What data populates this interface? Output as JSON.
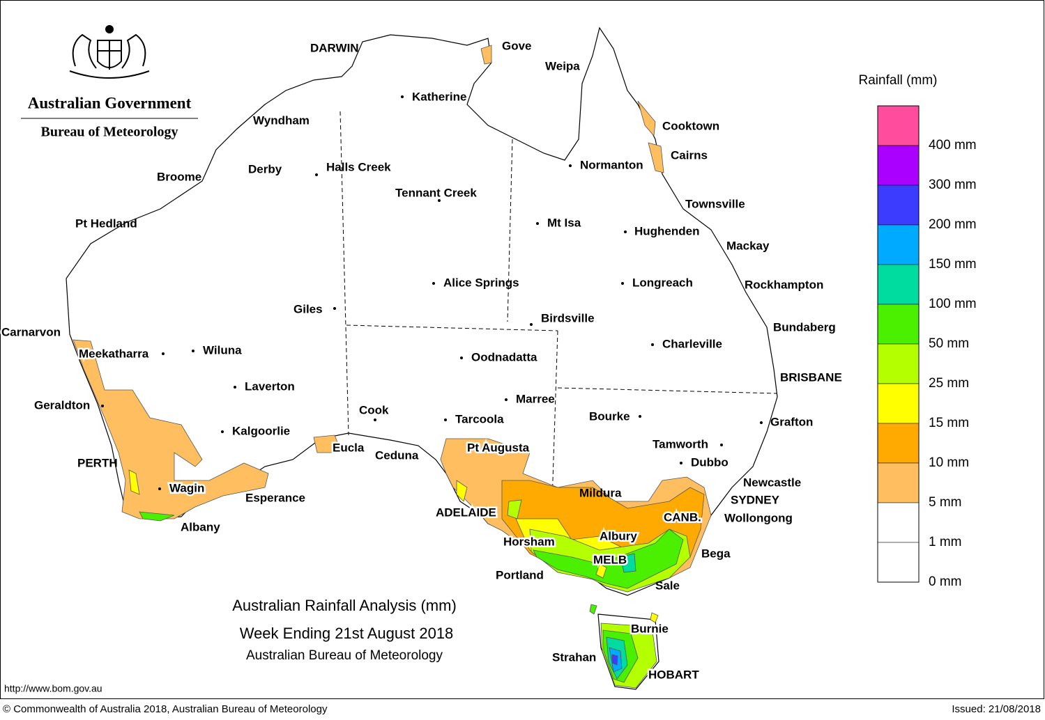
{
  "header": {
    "government": "Australian Government",
    "agency": "Bureau of Meteorology"
  },
  "title": {
    "line1": "Australian Rainfall Analysis (mm)",
    "line2": "Week Ending 21st August 2018",
    "line3": "Australian Bureau of Meteorology"
  },
  "legend": {
    "title": "Rainfall (mm)",
    "items": [
      {
        "label": "400 mm",
        "color": "#ff00ff"
      },
      {
        "label": "300 mm",
        "color": "#aa00ff"
      },
      {
        "label": "200 mm",
        "color": "#3c3cff"
      },
      {
        "label": "150 mm",
        "color": "#00aaff"
      },
      {
        "label": "100 mm",
        "color": "#00dca0"
      },
      {
        "label": "50 mm",
        "color": "#4bf000"
      },
      {
        "label": "25 mm",
        "color": "#b4ff00"
      },
      {
        "label": "15 mm",
        "color": "#ffff00"
      },
      {
        "label": "10 mm",
        "color": "#ffaa00"
      },
      {
        "label": "5 mm",
        "color": "#ffbf60"
      },
      {
        "label": "1 mm",
        "color": "#ffffff"
      },
      {
        "label": "0 mm",
        "color": null
      }
    ],
    "top_color": "#ff4c9c"
  },
  "places": [
    "DARWIN",
    "Gove",
    "Weipa",
    "Katherine",
    "Cooktown",
    "Wyndham",
    "Cairns",
    "Normanton",
    "Broome",
    "Derby",
    "Halls Creek",
    "Tennant Creek",
    "Townsville",
    "Pt Hedland",
    "Mt Isa",
    "Hughenden",
    "Mackay",
    "Alice Springs",
    "Longreach",
    "Rockhampton",
    "Giles",
    "Birdsville",
    "Carnarvon",
    "Bundaberg",
    "Charleville",
    "Meekatharra",
    "Wiluna",
    "Oodnadatta",
    "BRISBANE",
    "Laverton",
    "Marree",
    "Geraldton",
    "Cook",
    "Bourke",
    "Tarcoola",
    "Grafton",
    "Kalgoorlie",
    "Tamworth",
    "Eucla",
    "Pt Augusta",
    "Ceduna",
    "PERTH",
    "Dubbo",
    "Newcastle",
    "Wagin",
    "Mildura",
    "Esperance",
    "SYDNEY",
    "ADELAIDE",
    "CANB.",
    "Wollongong",
    "Albany",
    "Albury",
    "Horsham",
    "Bega",
    "MELB",
    "Portland",
    "Sale",
    "Burnie",
    "Strahan",
    "HOBART"
  ],
  "footer": {
    "url": "http://www.bom.gov.au",
    "copyright": "© Commonwealth of Australia 2018, Australian Bureau of Meteorology",
    "issued": "Issued: 21/08/2018"
  }
}
